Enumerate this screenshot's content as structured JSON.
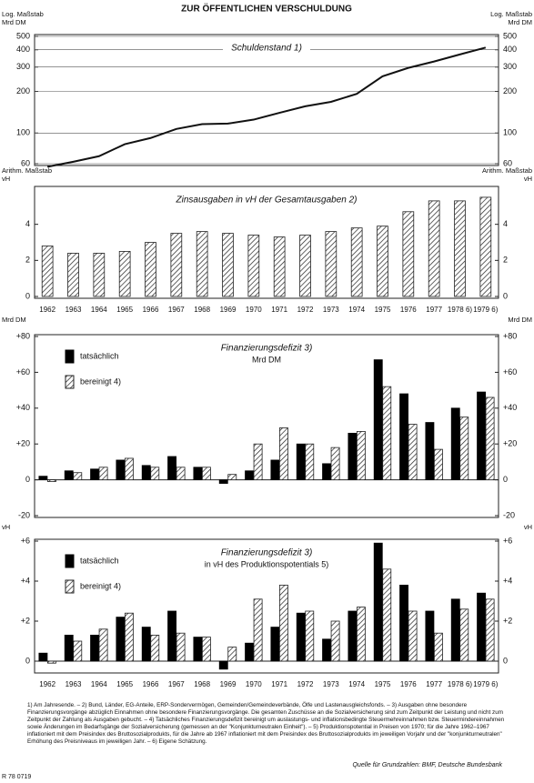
{
  "title": "ZUR ÖFFENTLICHEN VERSCHULDUNG",
  "chart_data": [
    {
      "type": "line",
      "title": "Schuldenstand 1)",
      "ylabel": [
        "Log. Maßstab",
        "Mrd DM"
      ],
      "y2label": [
        "Log. Maßstab",
        "Mrd DM"
      ],
      "yscale": "log",
      "ylim": [
        60,
        500
      ],
      "yticks": [
        60,
        100,
        200,
        300,
        400,
        500
      ],
      "grid": true,
      "color": "#111111",
      "values": [
        57,
        62,
        68,
        83,
        92,
        107,
        116,
        117,
        125,
        140,
        156,
        168,
        192,
        257,
        296,
        329,
        370,
        415
      ]
    },
    {
      "type": "bar",
      "title": "Zinsausgaben in vH der Gesamtausgaben 2)",
      "ylabel": [
        "Arithm. Maßstab",
        "vH"
      ],
      "y2label": [
        "Arithm. Maßstab",
        "vH"
      ],
      "ylim": [
        0,
        6
      ],
      "yticks": [
        0,
        2,
        4
      ],
      "color": "#222222",
      "hatch": true,
      "categories": [
        "1962",
        "1963",
        "1964",
        "1965",
        "1966",
        "1967",
        "1968",
        "1969",
        "1970",
        "1971",
        "1972",
        "1973",
        "1974",
        "1975",
        "1976",
        "1977",
        "1978 6)",
        "1979 6)"
      ],
      "values": [
        2.8,
        2.4,
        2.4,
        2.5,
        3.0,
        3.5,
        3.6,
        3.5,
        3.4,
        3.3,
        3.4,
        3.6,
        3.8,
        3.9,
        4.7,
        5.3,
        5.3,
        5.5
      ]
    },
    {
      "type": "bar",
      "title": "Finanzierungsdefizit 3)",
      "subtitle": "Mrd DM",
      "ylabel": [
        "Mrd DM"
      ],
      "y2label": [
        "Mrd DM"
      ],
      "ylim": [
        -20,
        80
      ],
      "yticks": [
        {
          "value": 80,
          "label": "+80"
        },
        {
          "value": 60,
          "label": "+60"
        },
        {
          "value": 40,
          "label": "+40"
        },
        {
          "value": 20,
          "label": "+20"
        },
        0,
        -20
      ],
      "series": [
        {
          "name": "tatsächlich",
          "color": "#000000",
          "hatch": false,
          "values": [
            2,
            5,
            6,
            11,
            8,
            13,
            7,
            -2,
            5,
            11,
            20,
            9,
            26,
            67,
            48,
            32,
            40,
            49
          ]
        },
        {
          "name": "bereinigt 4)",
          "color": "#222222",
          "hatch": true,
          "values": [
            -1,
            4,
            7,
            12,
            7,
            7,
            7,
            3,
            20,
            29,
            20,
            18,
            27,
            52,
            31,
            17,
            35,
            46
          ]
        }
      ]
    },
    {
      "type": "bar",
      "title": "Finanzierungsdefizit 3)",
      "subtitle": "in vH des Produktionspotentials 5)",
      "ylabel": [
        "vH"
      ],
      "y2label": [
        "vH"
      ],
      "ylim": [
        -0.5,
        6
      ],
      "yticks": [
        {
          "value": 6,
          "label": "+6"
        },
        {
          "value": 4,
          "label": "+4"
        },
        {
          "value": 2,
          "label": "+2"
        },
        0
      ],
      "categories": [
        "1962",
        "1963",
        "1964",
        "1965",
        "1966",
        "1967",
        "1968",
        "1969",
        "1970",
        "1971",
        "1972",
        "1973",
        "1974",
        "1975",
        "1976",
        "1977",
        "1978 6)",
        "1979 6)"
      ],
      "series": [
        {
          "name": "tatsächlich",
          "color": "#000000",
          "hatch": false,
          "values": [
            0.4,
            1.3,
            1.3,
            2.2,
            1.7,
            2.5,
            1.2,
            -0.4,
            0.9,
            1.7,
            2.4,
            1.1,
            2.5,
            5.9,
            3.8,
            2.5,
            3.1,
            3.4
          ]
        },
        {
          "name": "bereinigt 4)",
          "color": "#222222",
          "hatch": true,
          "values": [
            -0.1,
            1.0,
            1.6,
            2.4,
            1.3,
            1.4,
            1.2,
            0.7,
            3.1,
            3.8,
            2.5,
            2.0,
            2.7,
            4.6,
            2.5,
            1.4,
            2.6,
            3.1
          ]
        }
      ]
    }
  ],
  "notes": "1) Am Jahresende. – 2) Bund, Länder, EG-Anteile, ERP-Sondervermögen, Gemeinden/Gemeindeverbände, Ölfe und Lastenausgleichsfonds. – 3) Ausgaben ohne besondere Finanzierungsvorgänge abzüglich Einnahmen ohne besondere Finanzierungsvorgänge. Die gesamten Zuschüsse an die Sozialversicherung sind zum Zeitpunkt der Leistung und nicht zum Zeitpunkt der Zahlung als Ausgaben gebucht. – 4) Tatsächliches Finanzierungsdefizit bereinigt um auslastungs- und inflationsbedingte Steuermehreinnahmen bzw. Steuermindereinnahmen sowie Änderungen im Bedarfsgänge der Sozialversicherung (gemessen an der \"Konjunkturneutralen Einheit\"). – 5) Produktionspotential in Preisen von 1970; für die Jahre 1962–1967 inflationiert mit dem Preisindex des Bruttosozialprodukts, für die Jahre ab 1967 inflationiert mit dem Preisindex des Bruttosozialprodukts im jeweiligen Vorjahr und der \"konjunkturneutralen\" Erhöhung des Preisniveaus im jeweiligen Jahr. – 6) Eigene Schätzung.",
  "source": "Quelle für Grundzahlen: BMF, Deutsche Bundesbank",
  "code": "R 78 0719"
}
